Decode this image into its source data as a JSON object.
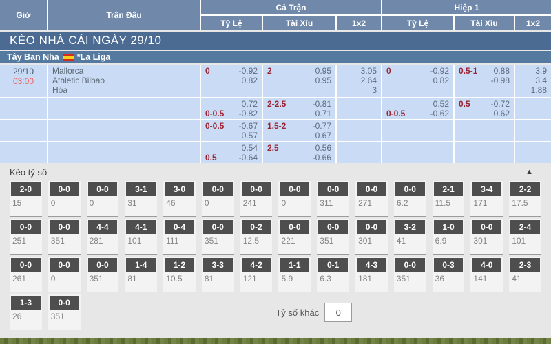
{
  "table_header": {
    "time": "Giờ",
    "match": "Trận Đấu",
    "full_match": "Cả Trận",
    "first_half": "Hiệp 1",
    "handicap": "Tỷ Lệ",
    "over_under": "Tài Xỉu",
    "one_x_two": "1x2"
  },
  "banner": {
    "title": "KÈO NHÀ CÁI NGÀY 29/10"
  },
  "league": {
    "country": "Tây Ban Nha",
    "name": "*La Liga",
    "flag": "spain-flag"
  },
  "match": {
    "date": "29/10",
    "time": "03:00",
    "teams": [
      "Mallorca",
      "Athletic Bilbao",
      "Hòa"
    ]
  },
  "odds_rows": [
    {
      "ft_hdp": [
        {
          "h": "0",
          "v": "-0.92"
        },
        {
          "h": "",
          "v": "0.82"
        }
      ],
      "ft_ou": [
        {
          "h": "2",
          "v": "0.95"
        },
        {
          "h": "",
          "v": "0.95"
        }
      ],
      "ft_1x2": [
        "3.05",
        "2.64",
        "3"
      ],
      "h1_hdp": [
        {
          "h": "0",
          "v": "-0.92"
        },
        {
          "h": "",
          "v": "0.82"
        }
      ],
      "h1_ou": [
        {
          "h": "0.5-1",
          "v": "0.88"
        },
        {
          "h": "",
          "v": "-0.98"
        }
      ],
      "h1_1x2": [
        "3.9",
        "3.4",
        "1.88"
      ]
    },
    {
      "ft_hdp": [
        {
          "h": "",
          "v": "0.72"
        },
        {
          "h": "0-0.5",
          "v": "-0.82"
        }
      ],
      "ft_ou": [
        {
          "h": "2-2.5",
          "v": "-0.81"
        },
        {
          "h": "",
          "v": "0.71"
        }
      ],
      "ft_1x2": [],
      "h1_hdp": [
        {
          "h": "",
          "v": "0.52"
        },
        {
          "h": "0-0.5",
          "v": "-0.62"
        }
      ],
      "h1_ou": [
        {
          "h": "0.5",
          "v": "-0.72"
        },
        {
          "h": "",
          "v": "0.62"
        }
      ],
      "h1_1x2": []
    },
    {
      "ft_hdp": [
        {
          "h": "0-0.5",
          "v": "-0.67"
        },
        {
          "h": "",
          "v": "0.57"
        }
      ],
      "ft_ou": [
        {
          "h": "1.5-2",
          "v": "-0.77"
        },
        {
          "h": "",
          "v": "0.67"
        }
      ],
      "ft_1x2": [],
      "h1_hdp": [],
      "h1_ou": [],
      "h1_1x2": []
    },
    {
      "ft_hdp": [
        {
          "h": "",
          "v": "0.54"
        },
        {
          "h": "0.5",
          "v": "-0.64"
        }
      ],
      "ft_ou": [
        {
          "h": "2.5",
          "v": "0.56"
        },
        {
          "h": "",
          "v": "-0.66"
        }
      ],
      "ft_1x2": [],
      "h1_hdp": [],
      "h1_ou": [],
      "h1_1x2": []
    }
  ],
  "score_section": {
    "title": "Kèo tỷ số",
    "collapse_icon": "▲",
    "rows": [
      [
        {
          "score": "2-0",
          "odd": "15"
        },
        {
          "score": "0-0",
          "odd": "0"
        },
        {
          "score": "0-0",
          "odd": "0"
        },
        {
          "score": "3-1",
          "odd": "31"
        },
        {
          "score": "3-0",
          "odd": "46"
        },
        {
          "score": "0-0",
          "odd": "0"
        },
        {
          "score": "0-0",
          "odd": "241"
        },
        {
          "score": "0-0",
          "odd": "0"
        },
        {
          "score": "0-0",
          "odd": "311"
        },
        {
          "score": "0-0",
          "odd": "271"
        },
        {
          "score": "0-0",
          "odd": "6.2"
        },
        {
          "score": "2-1",
          "odd": "11.5"
        },
        {
          "score": "3-4",
          "odd": "171"
        },
        {
          "score": "2-2",
          "odd": "17.5"
        }
      ],
      [
        {
          "score": "0-0",
          "odd": "251"
        },
        {
          "score": "0-0",
          "odd": "351"
        },
        {
          "score": "4-4",
          "odd": "281"
        },
        {
          "score": "4-1",
          "odd": "101"
        },
        {
          "score": "0-4",
          "odd": "111"
        },
        {
          "score": "0-0",
          "odd": "351"
        },
        {
          "score": "0-2",
          "odd": "12.5"
        },
        {
          "score": "0-0",
          "odd": "221"
        },
        {
          "score": "0-0",
          "odd": "351"
        },
        {
          "score": "0-0",
          "odd": "301"
        },
        {
          "score": "3-2",
          "odd": "41"
        },
        {
          "score": "1-0",
          "odd": "6.9"
        },
        {
          "score": "0-0",
          "odd": "301"
        },
        {
          "score": "2-4",
          "odd": "101"
        }
      ],
      [
        {
          "score": "0-0",
          "odd": "261"
        },
        {
          "score": "0-0",
          "odd": "0"
        },
        {
          "score": "0-0",
          "odd": "351"
        },
        {
          "score": "1-4",
          "odd": "81"
        },
        {
          "score": "1-2",
          "odd": "10.5"
        },
        {
          "score": "3-3",
          "odd": "81"
        },
        {
          "score": "4-2",
          "odd": "121"
        },
        {
          "score": "1-1",
          "odd": "5.9"
        },
        {
          "score": "0-1",
          "odd": "6.3"
        },
        {
          "score": "4-3",
          "odd": "181"
        },
        {
          "score": "0-0",
          "odd": "351"
        },
        {
          "score": "0-3",
          "odd": "36"
        },
        {
          "score": "4-0",
          "odd": "141"
        },
        {
          "score": "2-3",
          "odd": "41"
        }
      ],
      [
        {
          "score": "1-3",
          "odd": "26"
        },
        {
          "score": "0-0",
          "odd": "351"
        }
      ]
    ],
    "other_score_label": "Tỷ số khác",
    "other_score_value": "0"
  },
  "colors": {
    "header_blue": "#7089aa",
    "banner_blue": "#4b6b93",
    "league_blue": "#567a9f",
    "row_blue": "#cadcf5",
    "handicap_red": "#9c2533",
    "time_red": "#f15e5e",
    "chip_dark": "#4e4e4e",
    "grass_green": "#5a6a30"
  }
}
